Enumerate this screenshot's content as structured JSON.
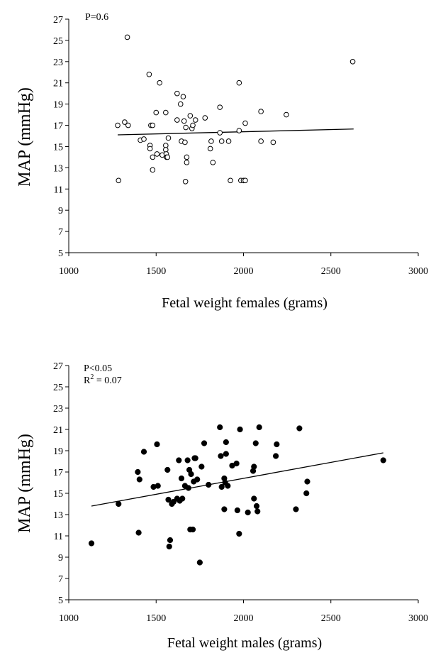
{
  "chart_data": [
    {
      "type": "scatter",
      "title": "",
      "xlabel": "Fetal weight females (grams)",
      "ylabel": "MAP (mmHg)",
      "xlim": [
        1000,
        3000
      ],
      "ylim": [
        5,
        27
      ],
      "xticks": [
        1000,
        1500,
        2000,
        2500,
        3000
      ],
      "yticks": [
        5,
        7,
        9,
        11,
        13,
        15,
        17,
        19,
        21,
        23,
        25,
        27
      ],
      "annotations": [
        "P=0.6"
      ],
      "marker": "open-circle",
      "trend": {
        "x": [
          1280,
          2630
        ],
        "y": [
          16.1,
          16.65
        ]
      },
      "points": [
        [
          1280,
          17.0
        ],
        [
          1285,
          11.8
        ],
        [
          1320,
          17.3
        ],
        [
          1335,
          25.3
        ],
        [
          1340,
          17.0
        ],
        [
          1410,
          15.6
        ],
        [
          1430,
          15.7
        ],
        [
          1460,
          21.8
        ],
        [
          1465,
          15.1
        ],
        [
          1465,
          14.8
        ],
        [
          1470,
          17.0
        ],
        [
          1480,
          17.0
        ],
        [
          1480,
          12.8
        ],
        [
          1480,
          14.0
        ],
        [
          1500,
          18.2
        ],
        [
          1505,
          14.3
        ],
        [
          1520,
          21.0
        ],
        [
          1535,
          14.2
        ],
        [
          1555,
          18.2
        ],
        [
          1555,
          15.1
        ],
        [
          1555,
          14.7
        ],
        [
          1558,
          14.3
        ],
        [
          1560,
          14.0
        ],
        [
          1565,
          14.0
        ],
        [
          1570,
          15.8
        ],
        [
          1620,
          20.0
        ],
        [
          1620,
          17.5
        ],
        [
          1640,
          19.0
        ],
        [
          1645,
          15.5
        ],
        [
          1655,
          19.7
        ],
        [
          1660,
          17.4
        ],
        [
          1665,
          15.4
        ],
        [
          1668,
          11.7
        ],
        [
          1670,
          16.8
        ],
        [
          1675,
          13.5
        ],
        [
          1675,
          14.0
        ],
        [
          1695,
          17.9
        ],
        [
          1705,
          16.7
        ],
        [
          1710,
          17.0
        ],
        [
          1725,
          17.5
        ],
        [
          1780,
          17.7
        ],
        [
          1810,
          14.8
        ],
        [
          1815,
          15.5
        ],
        [
          1825,
          13.5
        ],
        [
          1865,
          18.7
        ],
        [
          1865,
          16.3
        ],
        [
          1875,
          15.5
        ],
        [
          1915,
          15.5
        ],
        [
          1925,
          11.8
        ],
        [
          1975,
          21.0
        ],
        [
          1975,
          16.5
        ],
        [
          1985,
          11.8
        ],
        [
          2000,
          11.8
        ],
        [
          2010,
          17.2
        ],
        [
          2010,
          11.8
        ],
        [
          2100,
          18.3
        ],
        [
          2100,
          15.5
        ],
        [
          2170,
          15.4
        ],
        [
          2245,
          18.0
        ],
        [
          2625,
          23.0
        ]
      ]
    },
    {
      "type": "scatter",
      "title": "",
      "xlabel": "Fetal weight males (grams)",
      "ylabel": "MAP (mmHg)",
      "xlim": [
        1000,
        3000
      ],
      "ylim": [
        5,
        27
      ],
      "xticks": [
        1000,
        1500,
        2000,
        2500,
        3000
      ],
      "yticks": [
        5,
        7,
        9,
        11,
        13,
        15,
        17,
        19,
        21,
        23,
        25,
        27
      ],
      "annotations": [
        "P<0.05",
        "R",
        "2",
        " = 0.07"
      ],
      "marker": "filled-circle",
      "trend": {
        "x": [
          1130,
          2800
        ],
        "y": [
          13.8,
          18.8
        ]
      },
      "points": [
        [
          1130,
          10.3
        ],
        [
          1285,
          14.0
        ],
        [
          1395,
          17.0
        ],
        [
          1400,
          11.3
        ],
        [
          1405,
          16.3
        ],
        [
          1430,
          18.9
        ],
        [
          1485,
          15.6
        ],
        [
          1505,
          19.6
        ],
        [
          1510,
          15.7
        ],
        [
          1565,
          17.2
        ],
        [
          1570,
          14.4
        ],
        [
          1575,
          10.0
        ],
        [
          1580,
          10.6
        ],
        [
          1590,
          14.0
        ],
        [
          1600,
          14.2
        ],
        [
          1620,
          14.5
        ],
        [
          1630,
          18.1
        ],
        [
          1635,
          14.3
        ],
        [
          1645,
          16.4
        ],
        [
          1650,
          14.5
        ],
        [
          1665,
          15.7
        ],
        [
          1680,
          18.1
        ],
        [
          1685,
          15.5
        ],
        [
          1690,
          17.2
        ],
        [
          1695,
          11.6
        ],
        [
          1700,
          16.8
        ],
        [
          1710,
          11.6
        ],
        [
          1715,
          16.1
        ],
        [
          1720,
          18.3
        ],
        [
          1725,
          18.3
        ],
        [
          1735,
          16.3
        ],
        [
          1750,
          8.5
        ],
        [
          1760,
          17.5
        ],
        [
          1775,
          19.7
        ],
        [
          1800,
          15.8
        ],
        [
          1865,
          21.2
        ],
        [
          1870,
          18.5
        ],
        [
          1875,
          15.6
        ],
        [
          1890,
          16.4
        ],
        [
          1890,
          13.5
        ],
        [
          1895,
          16.0
        ],
        [
          1900,
          18.7
        ],
        [
          1900,
          19.8
        ],
        [
          1910,
          15.7
        ],
        [
          1935,
          17.6
        ],
        [
          1960,
          17.8
        ],
        [
          1965,
          13.4
        ],
        [
          1975,
          11.2
        ],
        [
          1980,
          21.0
        ],
        [
          2025,
          13.2
        ],
        [
          2055,
          17.1
        ],
        [
          2060,
          14.5
        ],
        [
          2060,
          17.5
        ],
        [
          2070,
          19.7
        ],
        [
          2075,
          13.8
        ],
        [
          2080,
          13.3
        ],
        [
          2090,
          21.2
        ],
        [
          2185,
          18.5
        ],
        [
          2190,
          19.6
        ],
        [
          2300,
          13.5
        ],
        [
          2320,
          21.1
        ],
        [
          2360,
          15.0
        ],
        [
          2365,
          16.1
        ],
        [
          2800,
          18.1
        ]
      ]
    }
  ]
}
